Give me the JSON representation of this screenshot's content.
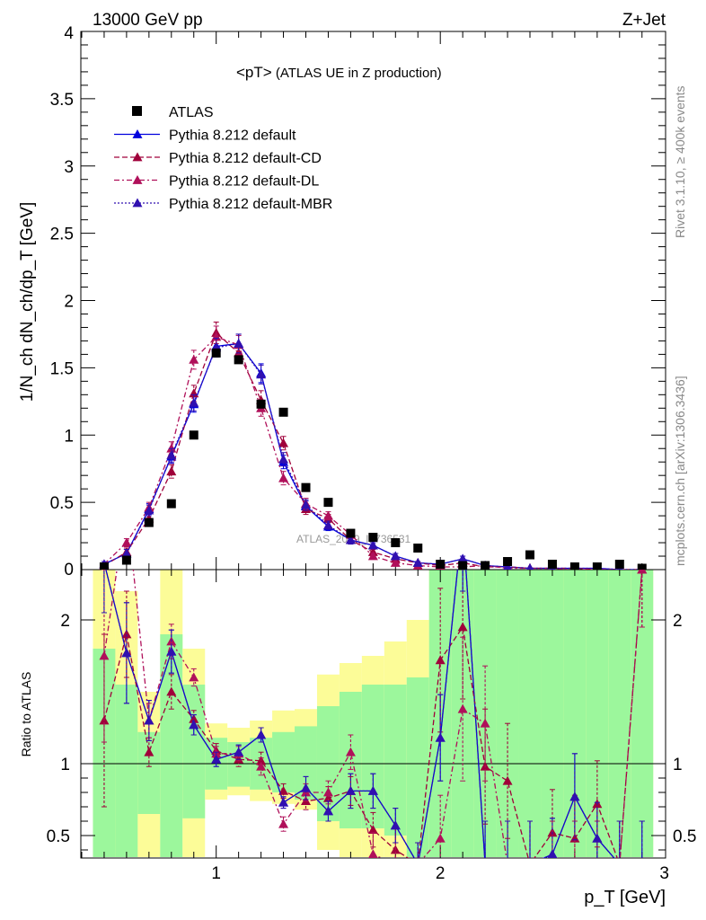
{
  "header": {
    "left": "13000 GeV pp",
    "right": "Z+Jet"
  },
  "side_labels": {
    "rivet": "Rivet 3.1.10, ≥ 400k events",
    "mcplots": "mcplots.cern.ch [arXiv:1306.3436]"
  },
  "watermark": "ATLAS_2019_I1736531",
  "top_title": {
    "main": "<pT>",
    "sub": " (ATLAS UE in Z production)"
  },
  "top_ylabel": "1/N_ch dN_ch/dp_T [GeV]",
  "ratio_ylabel": "Ratio to ATLAS",
  "xlabel": "p_T [GeV]",
  "colors": {
    "default": "#0000dd",
    "cd": "#a0003a",
    "dl": "#b0105a",
    "mbr": "#3010b0",
    "green": "#9cf79c",
    "yellow": "#fcfc98"
  },
  "chart_data": [
    {
      "type": "scatter",
      "panel": "main",
      "title": "<pT> (ATLAS UE in Z production)",
      "xlabel": "p_T [GeV]",
      "ylabel": "1/N_ch dN_ch/dp_T [GeV]",
      "xlim": [
        0.4,
        3.0
      ],
      "ylim": [
        0,
        4
      ],
      "x_ticks": [
        "1",
        "2",
        "3"
      ],
      "y_ticks": [
        "0",
        "0.5",
        "1",
        "1.5",
        "2",
        "2.5",
        "3",
        "3.5",
        "4"
      ],
      "legend_position": "top-left",
      "x": [
        0.5,
        0.6,
        0.7,
        0.8,
        0.9,
        1.0,
        1.1,
        1.2,
        1.3,
        1.4,
        1.5,
        1.6,
        1.7,
        1.8,
        1.9,
        2.0,
        2.1,
        2.2,
        2.3,
        2.4,
        2.5,
        2.6,
        2.7,
        2.8,
        2.9
      ],
      "series": [
        {
          "name": "ATLAS",
          "style": "square",
          "values": [
            0.02,
            0.07,
            0.35,
            0.49,
            1.0,
            1.61,
            1.56,
            1.23,
            1.17,
            0.61,
            0.5,
            0.27,
            0.24,
            0.2,
            0.16,
            0.04,
            0.03,
            0.03,
            0.06,
            0.11,
            0.04,
            0.02,
            0.02,
            0.04,
            0.01
          ]
        },
        {
          "name": "Pythia 8.212 default",
          "style": "solid",
          "values": [
            0.04,
            0.12,
            0.45,
            0.84,
            1.23,
            1.66,
            1.68,
            1.46,
            0.8,
            0.47,
            0.32,
            0.22,
            0.18,
            0.1,
            0.05,
            0.04,
            0.08,
            0.03,
            0.02,
            0.01,
            0.01,
            0.01,
            0.01,
            0.0,
            0.0
          ],
          "errors": [
            0.02,
            0.03,
            0.04,
            0.05,
            0.06,
            0.07,
            0.07,
            0.07,
            0.05,
            0.04,
            0.03,
            0.03,
            0.02,
            0.02,
            0.01,
            0.01,
            0.02,
            0.01,
            0.01,
            0.0,
            0.0,
            0.0,
            0.0,
            0.0,
            0.0
          ]
        },
        {
          "name": "Pythia 8.212 default-CD",
          "style": "dashed",
          "values": [
            0.03,
            0.13,
            0.38,
            0.73,
            1.31,
            1.76,
            1.61,
            1.26,
            0.94,
            0.45,
            0.38,
            0.22,
            0.13,
            0.08,
            0.05,
            0.03,
            0.05,
            0.02,
            0.02,
            0.01,
            0.01,
            0.01,
            0.0,
            0.0,
            0.0
          ],
          "errors": [
            0.02,
            0.03,
            0.04,
            0.05,
            0.06,
            0.08,
            0.07,
            0.07,
            0.05,
            0.04,
            0.03,
            0.03,
            0.02,
            0.02,
            0.01,
            0.01,
            0.02,
            0.01,
            0.01,
            0.0,
            0.0,
            0.0,
            0.0,
            0.0,
            0.0
          ]
        },
        {
          "name": "Pythia 8.212 default-DL",
          "style": "dashdot",
          "values": [
            0.04,
            0.2,
            0.46,
            0.9,
            1.56,
            1.73,
            1.67,
            1.2,
            0.68,
            0.49,
            0.4,
            0.26,
            0.1,
            0.05,
            0.03,
            0.02,
            0.02,
            0.03,
            0.01,
            0.01,
            0.01,
            0.0,
            0.0,
            0.0,
            0.0
          ],
          "errors": [
            0.02,
            0.03,
            0.04,
            0.05,
            0.07,
            0.08,
            0.07,
            0.06,
            0.05,
            0.04,
            0.03,
            0.03,
            0.02,
            0.01,
            0.01,
            0.01,
            0.01,
            0.01,
            0.0,
            0.0,
            0.0,
            0.0,
            0.0,
            0.0,
            0.0
          ]
        },
        {
          "name": "Pythia 8.212 default-MBR",
          "style": "dotted",
          "values": [
            0.04,
            0.12,
            0.44,
            0.85,
            1.24,
            1.65,
            1.68,
            1.45,
            0.82,
            0.48,
            0.33,
            0.22,
            0.18,
            0.1,
            0.05,
            0.04,
            0.08,
            0.03,
            0.02,
            0.01,
            0.01,
            0.01,
            0.01,
            0.0,
            0.0
          ],
          "errors": [
            0.02,
            0.03,
            0.04,
            0.05,
            0.06,
            0.07,
            0.07,
            0.07,
            0.05,
            0.04,
            0.03,
            0.03,
            0.02,
            0.02,
            0.01,
            0.01,
            0.02,
            0.01,
            0.01,
            0.0,
            0.0,
            0.0,
            0.0,
            0.0,
            0.0
          ]
        }
      ]
    },
    {
      "type": "line",
      "panel": "ratio",
      "ylabel": "Ratio to ATLAS",
      "xlabel": "p_T [GeV]",
      "xlim": [
        0.4,
        3.0
      ],
      "ylim": [
        0.35,
        2.35
      ],
      "y_ticks": [
        "0.5",
        "1",
        "2"
      ],
      "x_ticks": [
        "1",
        "2",
        "3"
      ],
      "bands": {
        "x_edges": [
          0.45,
          0.55,
          0.65,
          0.75,
          0.85,
          0.95,
          1.05,
          1.15,
          1.25,
          1.35,
          1.45,
          1.55,
          1.65,
          1.75,
          1.85,
          1.95,
          2.05,
          2.15,
          2.25,
          2.35,
          2.45,
          2.55,
          2.65,
          2.75,
          2.85,
          2.95
        ],
        "green_low": [
          0.35,
          0.35,
          0.65,
          0.35,
          0.62,
          0.82,
          0.84,
          0.82,
          0.8,
          0.75,
          0.6,
          0.55,
          0.55,
          0.5,
          0.35,
          0.35,
          0.35,
          0.35,
          0.35,
          0.35,
          0.35,
          0.35,
          0.35,
          0.35,
          0.35
        ],
        "green_high": [
          1.8,
          1.55,
          1.22,
          1.9,
          1.55,
          1.18,
          1.15,
          1.18,
          1.22,
          1.26,
          1.4,
          1.5,
          1.55,
          1.55,
          1.6,
          2.35,
          2.35,
          2.35,
          2.35,
          2.35,
          2.35,
          2.35,
          2.35,
          2.35,
          2.35
        ],
        "yellow_low": [
          0.35,
          0.35,
          0.35,
          0.35,
          0.35,
          0.75,
          0.78,
          0.74,
          0.72,
          0.68,
          0.4,
          0.35,
          0.35,
          0.35,
          0.35,
          0.35,
          0.35,
          0.35,
          0.35,
          0.35,
          0.35,
          0.35,
          0.35,
          0.35,
          0.35
        ],
        "yellow_high": [
          2.35,
          2.2,
          1.5,
          2.35,
          1.8,
          1.28,
          1.25,
          1.3,
          1.37,
          1.38,
          1.62,
          1.7,
          1.75,
          1.85,
          2.0,
          2.35,
          2.35,
          2.35,
          2.35,
          2.1,
          2.35,
          2.35,
          2.35,
          2.35,
          2.35
        ]
      },
      "series": [
        {
          "name": "Pythia 8.212 default",
          "style": "solid",
          "values": [
            2.4,
            1.77,
            1.3,
            1.78,
            1.27,
            1.03,
            1.08,
            1.2,
            0.73,
            0.83,
            0.67,
            0.81,
            0.81,
            0.57,
            0.3,
            1.18,
            2.7,
            0.3,
            0.3,
            0.3,
            0.37,
            0.77,
            0.48,
            0.3,
            0.3
          ],
          "errors": [
            0.35,
            0.35,
            0.14,
            0.15,
            0.07,
            0.05,
            0.05,
            0.05,
            0.04,
            0.08,
            0.07,
            0.12,
            0.12,
            0.12,
            0.15,
            0.3,
            0.5,
            0.3,
            0.3,
            0.3,
            0.25,
            0.3,
            0.25,
            0.3,
            0.3
          ]
        },
        {
          "name": "Pythia 8.212 default-CD",
          "style": "dashed",
          "values": [
            1.3,
            1.9,
            1.08,
            1.5,
            1.31,
            1.09,
            1.03,
            1.02,
            0.81,
            0.74,
            0.76,
            0.81,
            0.54,
            0.4,
            0.3,
            1.72,
            1.95,
            0.98,
            0.88,
            0.3,
            0.52,
            0.48,
            0.72,
            0.3,
            2.35
          ],
          "errors": [
            0.6,
            0.3,
            0.1,
            0.12,
            0.06,
            0.05,
            0.05,
            0.06,
            0.05,
            0.06,
            0.08,
            0.1,
            0.12,
            0.15,
            0.15,
            0.5,
            0.5,
            0.4,
            0.4,
            0.3,
            0.3,
            0.3,
            0.3,
            0.3,
            0.4
          ]
        },
        {
          "name": "Pythia 8.212 default-DL",
          "style": "dashdot",
          "values": [
            1.75,
            2.8,
            1.3,
            1.85,
            1.6,
            1.07,
            1.07,
            0.98,
            0.58,
            0.8,
            0.8,
            1.08,
            0.37,
            0.3,
            0.3,
            0.48,
            1.38,
            1.28,
            0.3,
            0.3,
            0.3,
            0.3,
            0.3,
            0.3,
            2.35
          ],
          "errors": [
            0.6,
            0.3,
            0.12,
            0.12,
            0.06,
            0.05,
            0.05,
            0.06,
            0.05,
            0.06,
            0.08,
            0.12,
            0.15,
            0.15,
            0.15,
            0.3,
            0.5,
            0.4,
            0.3,
            0.3,
            0.3,
            0.3,
            0.3,
            0.3,
            0.4
          ]
        },
        {
          "name": "Pythia 8.212 default-MBR",
          "style": "dotted",
          "values": [
            2.4,
            1.77,
            1.3,
            1.78,
            1.27,
            1.03,
            1.08,
            1.2,
            0.73,
            0.83,
            0.67,
            0.81,
            0.81,
            0.57,
            0.3,
            1.18,
            2.7,
            0.3,
            0.3,
            0.3,
            0.37,
            0.77,
            0.48,
            0.3,
            0.3
          ],
          "errors": [
            0.35,
            0.35,
            0.14,
            0.15,
            0.07,
            0.05,
            0.05,
            0.05,
            0.04,
            0.08,
            0.07,
            0.12,
            0.12,
            0.12,
            0.15,
            0.3,
            0.5,
            0.3,
            0.3,
            0.3,
            0.25,
            0.3,
            0.25,
            0.3,
            0.3
          ]
        }
      ]
    }
  ]
}
